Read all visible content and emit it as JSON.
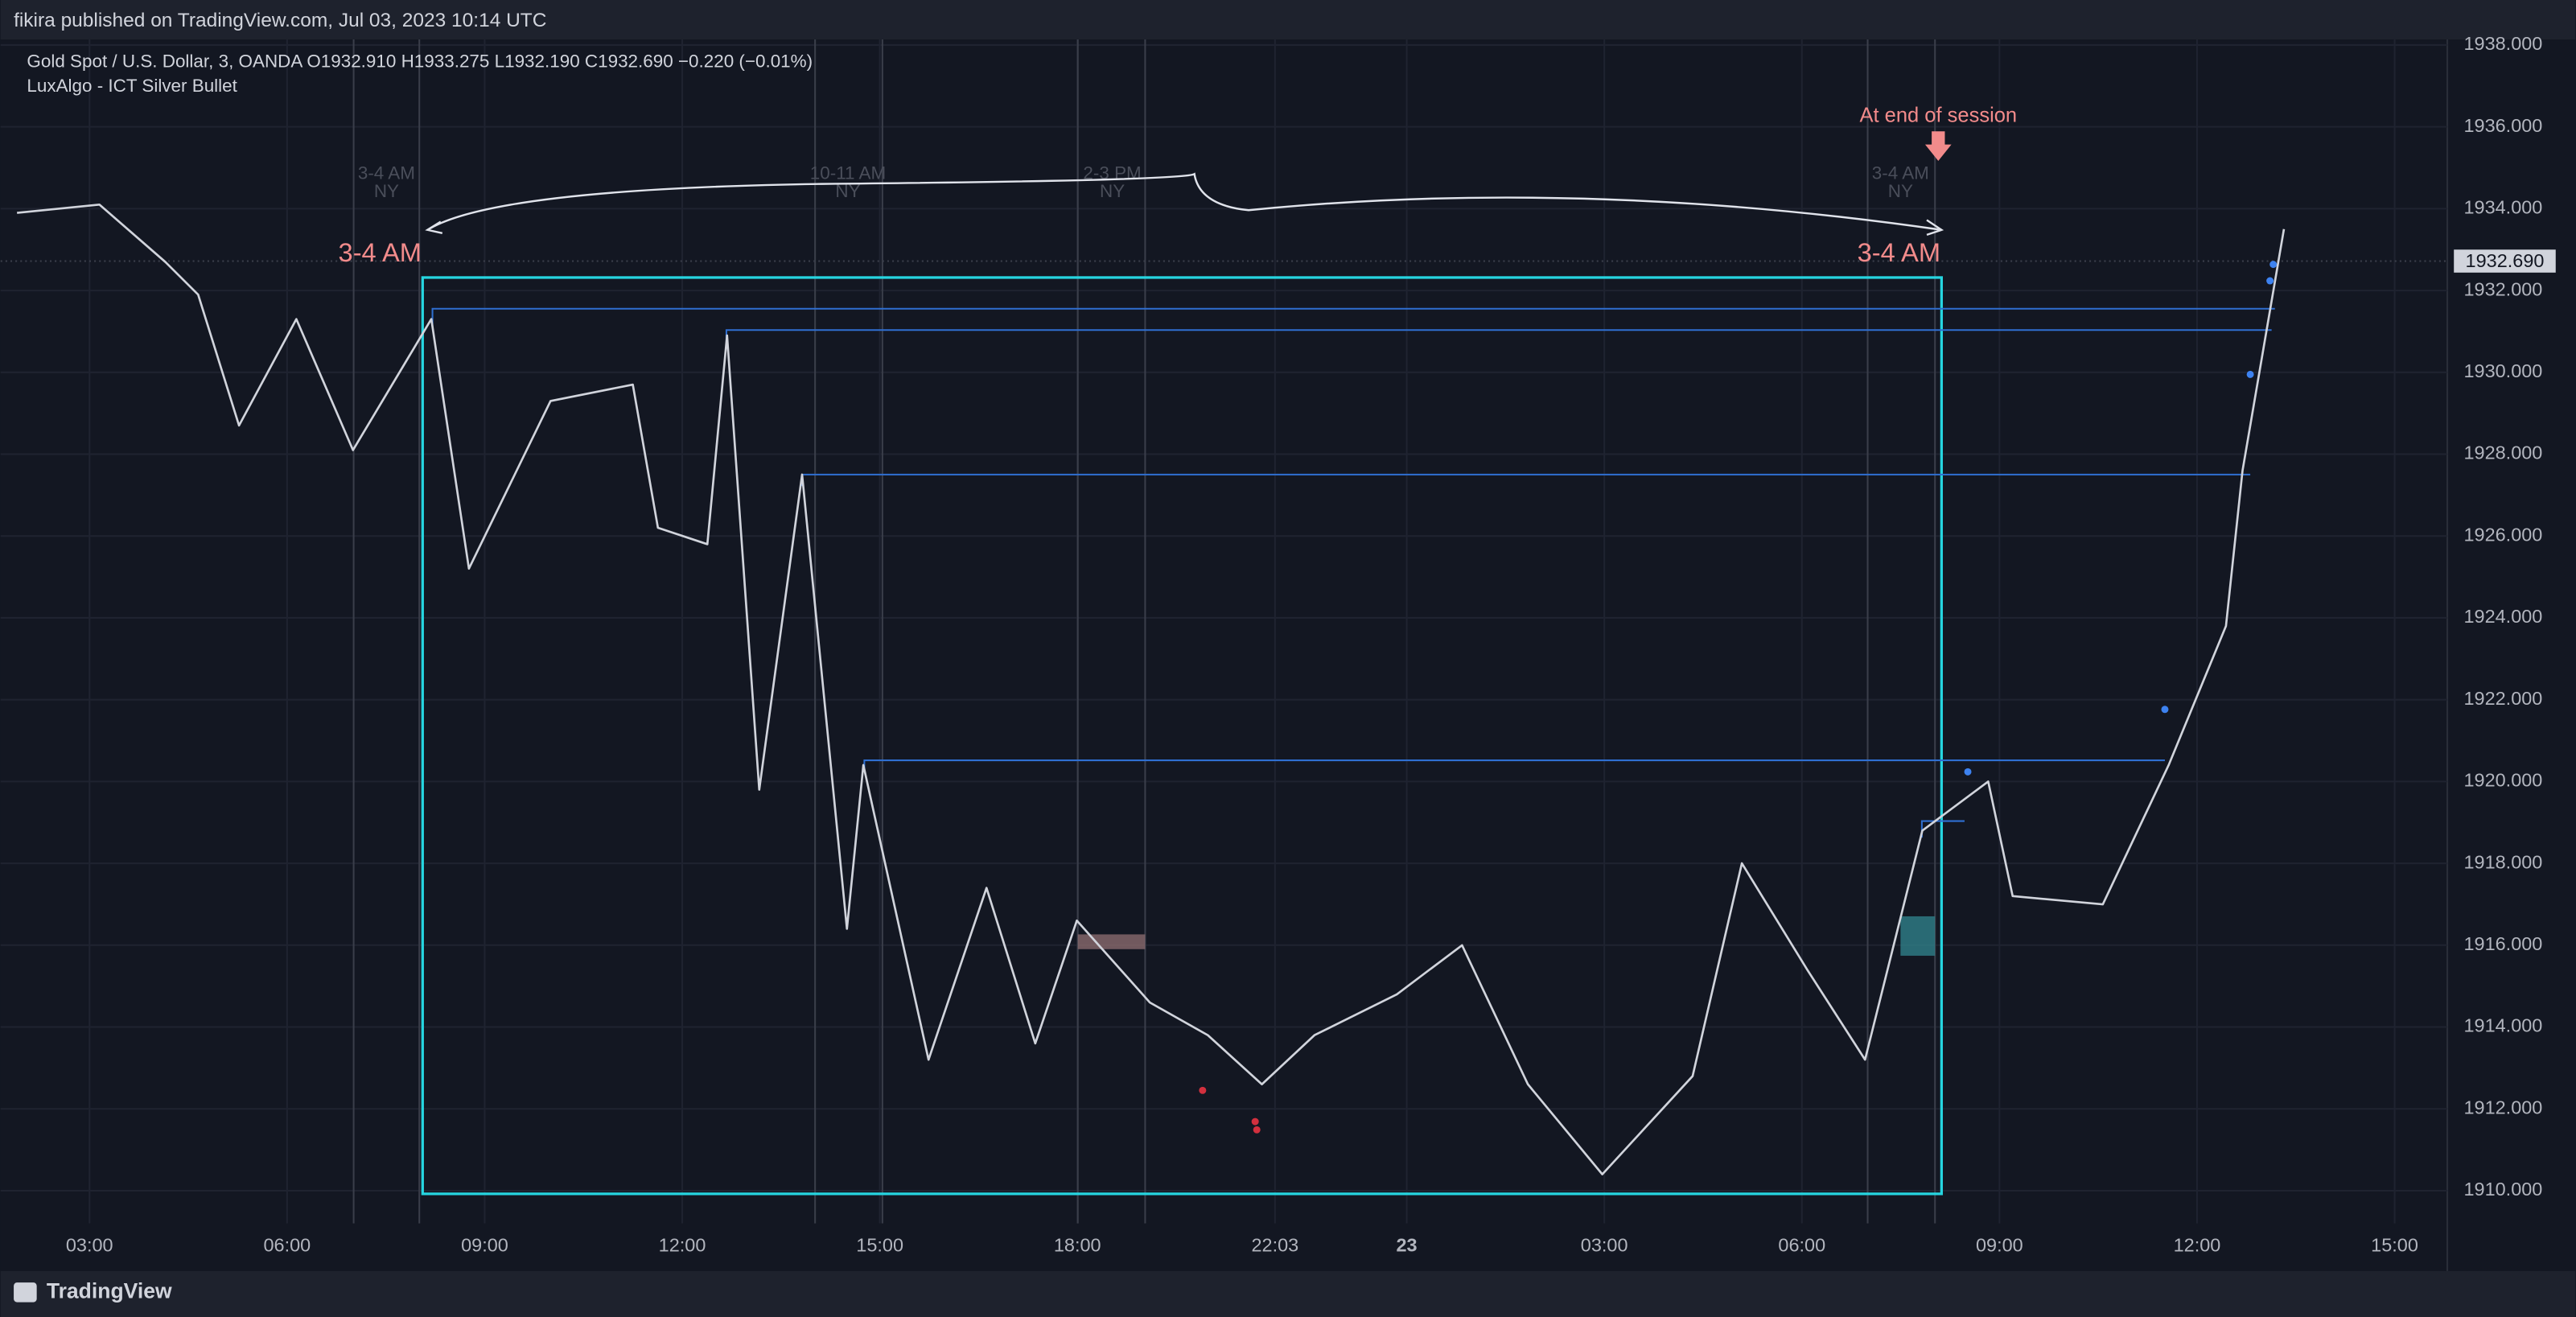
{
  "header": "fikira published on TradingView.com, Jul 03, 2023 10:14 UTC",
  "footer": "TradingView",
  "chart_data": {
    "type": "line",
    "title": "Gold Spot / U.S. Dollar, 3, OANDA  O1932.910  H1933.275  L1932.190  C1932.690  −0.220 (−0.01%)",
    "subtitle": "LuxAlgo - ICT Silver Bullet",
    "x": [
      1.9,
      3.15,
      4.15,
      4.65,
      5.27,
      6.14,
      7.0,
      8.19,
      8.76,
      10.0,
      11.25,
      11.63,
      12.38,
      12.68,
      13.17,
      13.82,
      14.5,
      14.75,
      15.74,
      16.62,
      17.36,
      17.99,
      19.1,
      19.98,
      20.8,
      21.6,
      22.85,
      23.84,
      24.84,
      25.97,
      27.34,
      28.09,
      29.08,
      29.96,
      30.83,
      31.83,
      32.2,
      33.57,
      34.57,
      35.44,
      35.69,
      36.32
    ],
    "values": [
      1933.9,
      1934.1,
      1932.7,
      1931.9,
      1928.7,
      1931.3,
      1928.1,
      1931.3,
      1925.2,
      1929.3,
      1929.7,
      1926.2,
      1925.8,
      1930.9,
      1919.8,
      1927.5,
      1916.4,
      1920.4,
      1913.2,
      1917.4,
      1913.6,
      1916.6,
      1914.6,
      1913.8,
      1912.6,
      1913.8,
      1914.8,
      1916.0,
      1912.6,
      1910.4,
      1912.8,
      1918.0,
      1915.4,
      1913.2,
      1918.8,
      1920.0,
      1917.2,
      1917.0,
      1920.4,
      1923.8,
      1927.6,
      1933.5
    ],
    "color": "#d1d4dc",
    "last_price": "1932.690",
    "xlim": [
      1.65,
      38.8
    ],
    "xticks": [
      {
        "value": 3,
        "label": "03:00"
      },
      {
        "value": 6,
        "label": "06:00"
      },
      {
        "value": 9,
        "label": "09:00"
      },
      {
        "value": 12,
        "label": "12:00"
      },
      {
        "value": 15,
        "label": "15:00"
      },
      {
        "value": 18,
        "label": "18:00"
      },
      {
        "value": 21,
        "label": "22:03"
      },
      23,
      {
        "value": 26,
        "label": "03:00"
      },
      {
        "value": 29,
        "label": "06:00"
      },
      {
        "value": 32,
        "label": "09:00"
      },
      {
        "value": 35,
        "label": "12:00"
      },
      {
        "value": 38,
        "label": "15:00"
      }
    ],
    "ylim": [
      1909.2,
      1939.1
    ],
    "yticks": [
      {
        "value": 1910,
        "label": "1910.000"
      },
      {
        "value": 1912,
        "label": "1912.000"
      },
      {
        "value": 1914,
        "label": "1914.000"
      },
      {
        "value": 1916,
        "label": "1916.000"
      },
      {
        "value": 1918,
        "label": "1918.000"
      },
      {
        "value": 1920,
        "label": "1920.000"
      },
      {
        "value": 1922,
        "label": "1922.000"
      },
      {
        "value": 1924,
        "label": "1924.000"
      },
      {
        "value": 1926,
        "label": "1926.000"
      },
      {
        "value": 1928,
        "label": "1928.000"
      },
      {
        "value": 1930,
        "label": "1930.000"
      },
      {
        "value": 1932,
        "label": "1932.000"
      },
      {
        "value": 1934,
        "label": "1934.000"
      },
      {
        "value": 1936,
        "label": "1936.000"
      },
      {
        "value": 1938,
        "label": "1938.000"
      }
    ],
    "grid": true,
    "sessions": [
      [
        "3-4 AM",
        "NY"
      ],
      [
        "10-11 AM",
        "NY"
      ],
      [
        "2-3 PM",
        "NY"
      ],
      [
        "3-4 AM",
        "NY"
      ]
    ],
    "annotations": {
      "end_session": "At end of session",
      "left": "3-4 AM",
      "right": "3-4 AM"
    }
  }
}
